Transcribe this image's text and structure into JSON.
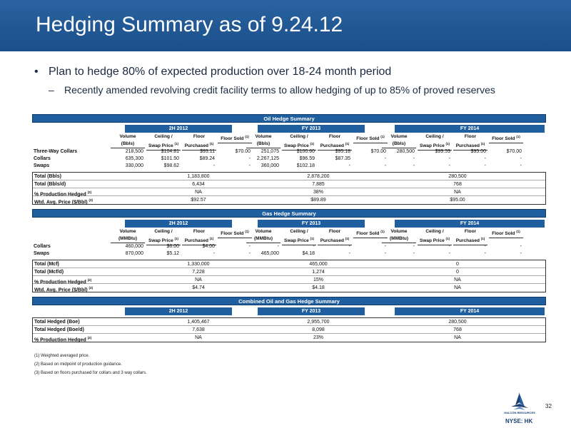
{
  "title": "Hedging Summary as of 9.24.12",
  "bullets": {
    "main": "Plan to hedge 80% of expected production over 18-24 month period",
    "sub": "Recently amended revolving credit facility terms to allow hedging of up to 85% of proved reserves"
  },
  "oil": {
    "title": "Oil Hedge Summary",
    "periods": [
      "2H 2012",
      "FY 2013",
      "FY 2014"
    ],
    "headers": [
      {
        "l1": "Volume",
        "l2": "(Bbls)"
      },
      {
        "l1": "Ceiling /",
        "l2": "Swap Price",
        "sup": "(1)"
      },
      {
        "l1": "Floor",
        "l2": "Purchased",
        "sup": "(1)"
      },
      {
        "l1": "",
        "l2": "Floor Sold",
        "sup": "(1)"
      }
    ],
    "rows": [
      {
        "label": "Three-Way Collars",
        "cells": [
          "218,500",
          "$104.81",
          "$93.11",
          "$70.00",
          "251,075",
          "$100.60",
          "$95.18",
          "$70.00",
          "280,500",
          "$99.59",
          "$95.00",
          "$70.00"
        ]
      },
      {
        "label": "Collars",
        "cells": [
          "635,300",
          "$101.50",
          "$89.24",
          "-",
          "2,267,125",
          "$96.59",
          "$87.35",
          "-",
          "-",
          "-",
          "-",
          "-"
        ]
      },
      {
        "label": "Swaps",
        "cells": [
          "330,000",
          "$98.62",
          "-",
          "-",
          "360,000",
          "$102.18",
          "-",
          "-",
          "-",
          "-",
          "-",
          "-"
        ]
      }
    ],
    "totals": [
      {
        "label": "Total (Bbls)",
        "sup": "",
        "vals": [
          "1,183,800",
          "2,878,200",
          "280,500"
        ]
      },
      {
        "label": "Total (Bbls/d)",
        "sup": "",
        "vals": [
          "6,434",
          "7,885",
          "768"
        ]
      },
      {
        "label": "% Production Hedged",
        "sup": "(2)",
        "vals": [
          "NA",
          "38%",
          "NA"
        ]
      },
      {
        "label": "Wtd. Avg. Price ($/Bbl)",
        "sup": "(3)",
        "vals": [
          "$92.57",
          "$89.89",
          "$95.00"
        ]
      }
    ]
  },
  "gas": {
    "title": "Gas Hedge Summary",
    "periods": [
      "2H 2012",
      "FY 2013",
      "FY 2014"
    ],
    "headers": [
      {
        "l1": "Volume",
        "l2": "(MMBtu)"
      },
      {
        "l1": "Ceiling /",
        "l2": "Swap Price",
        "sup": "(1)"
      },
      {
        "l1": "Floor",
        "l2": "Purchased",
        "sup": "(1)"
      },
      {
        "l1": "",
        "l2": "Floor Sold",
        "sup": "(1)"
      }
    ],
    "rows": [
      {
        "label": "Collars",
        "cells": [
          "460,000",
          "$6.00",
          "$4.00",
          "-",
          "-",
          "-",
          "-",
          "-",
          "-",
          "-",
          "-",
          "-"
        ]
      },
      {
        "label": "Swaps",
        "cells": [
          "870,000",
          "$5.12",
          "-",
          "-",
          "465,000",
          "$4.18",
          "-",
          "-",
          "-",
          "-",
          "-",
          "-"
        ]
      }
    ],
    "totals": [
      {
        "label": "Total (Mcf)",
        "sup": "",
        "vals": [
          "1,330,000",
          "465,000",
          "0"
        ]
      },
      {
        "label": "Total (Mcf/d)",
        "sup": "",
        "vals": [
          "7,228",
          "1,274",
          "0"
        ]
      },
      {
        "label": "% Production Hedged",
        "sup": "(2)",
        "vals": [
          "NA",
          "15%",
          "NA"
        ]
      },
      {
        "label": "Wtd. Avg. Price ($/Bbl)",
        "sup": "(3)",
        "vals": [
          "$4.74",
          "$4.18",
          "NA"
        ]
      }
    ]
  },
  "combined": {
    "title": "Combined Oil and Gas Hedge Summary",
    "periods": [
      "2H 2012",
      "FY 2013",
      "FY 2014"
    ],
    "totals": [
      {
        "label": "Total Hedged (Boe)",
        "sup": "",
        "vals": [
          "1,405,467",
          "2,955,700",
          "280,500"
        ]
      },
      {
        "label": "Total Hedged (Boe/d)",
        "sup": "",
        "vals": [
          "7,638",
          "8,098",
          "768"
        ]
      },
      {
        "label": "% Production Hedged",
        "sup": "(2)",
        "vals": [
          "NA",
          "23%",
          "NA"
        ]
      }
    ]
  },
  "footnotes": [
    "(1) Weighted averaged price.",
    "(2) Based on midpoint of production guidance.",
    "(3) Based on floors purchased for collars and 3 way collars."
  ],
  "page_number": "32",
  "logo_text": "HALCÓN RESOURCES",
  "ticker": "NYSE: HK",
  "colors": {
    "title_bar": "#1f5a98",
    "section_bar": "#1f5fa0"
  }
}
